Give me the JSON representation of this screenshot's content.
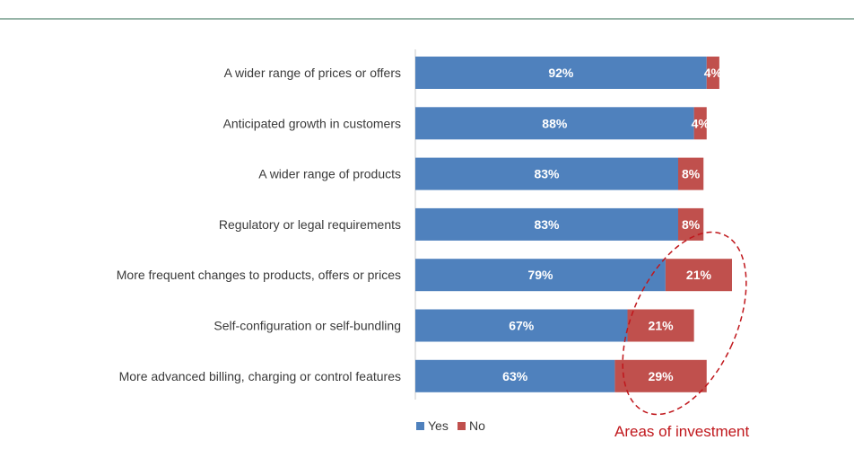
{
  "chart_data": {
    "type": "bar",
    "orientation": "horizontal",
    "stacked": true,
    "categories": [
      "A wider range of prices or offers",
      "Anticipated growth in customers",
      "A wider range of products",
      "Regulatory or legal requirements",
      "More frequent changes to products, offers or prices",
      "Self-configuration or self-bundling",
      "More advanced billing, charging or control features"
    ],
    "series": [
      {
        "name": "Yes",
        "color": "#4f81bd",
        "values": [
          92,
          88,
          83,
          83,
          79,
          67,
          63
        ],
        "labels": [
          "92%",
          "88%",
          "83%",
          "83%",
          "79%",
          "67%",
          "63%"
        ]
      },
      {
        "name": "No",
        "color": "#c0504d",
        "values": [
          4,
          4,
          8,
          8,
          21,
          21,
          29
        ],
        "labels": [
          "4%",
          "4%",
          "8%",
          "8%",
          "21%",
          "21%",
          "29%"
        ]
      }
    ],
    "xlim": [
      0,
      100
    ],
    "grid": false,
    "legend_position": "bottom-left",
    "annotation": {
      "text": "Areas of investment",
      "style": "dashed-ellipse",
      "color": "#c0171c",
      "highlights": [
        4,
        5,
        6
      ]
    }
  },
  "colors": {
    "header_rule": "#2e6a4f",
    "axis": "#c8c8c8"
  }
}
